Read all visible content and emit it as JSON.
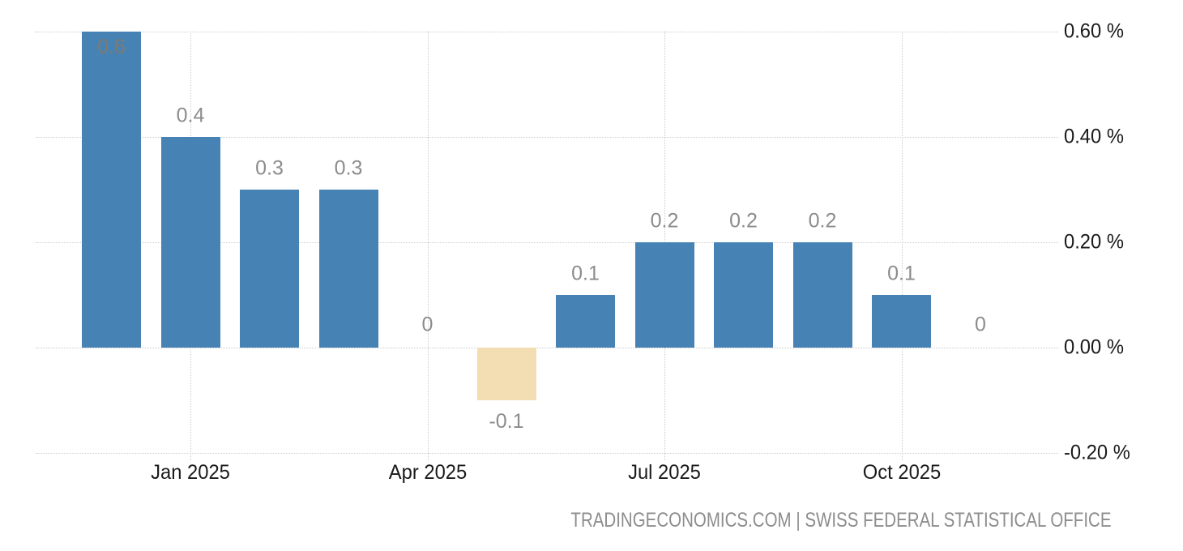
{
  "chart_data": {
    "type": "bar",
    "title": "",
    "unit": "%",
    "values": [
      0.6,
      0.4,
      0.3,
      0.3,
      0,
      -0.1,
      0.1,
      0.2,
      0.2,
      0.2,
      0.1,
      0
    ],
    "bar_labels": [
      "0.6",
      "0.4",
      "0.3",
      "0.3",
      "0",
      "-0.1",
      "0.1",
      "0.2",
      "0.2",
      "0.2",
      "0.1",
      "0"
    ],
    "first_bar_label_inside": true,
    "x_ticks": [
      {
        "slot": 1,
        "label": "Jan 2025"
      },
      {
        "slot": 4,
        "label": "Apr 2025"
      },
      {
        "slot": 7,
        "label": "Jul 2025"
      },
      {
        "slot": 10,
        "label": "Oct 2025"
      }
    ],
    "y_ticks": [
      {
        "value": 0.6,
        "label": "0.60 %"
      },
      {
        "value": 0.4,
        "label": "0.40 %"
      },
      {
        "value": 0.2,
        "label": "0.20 %"
      },
      {
        "value": 0,
        "label": "0.00 %"
      },
      {
        "value": -0.2,
        "label": "-0.20 %"
      }
    ],
    "ylim": [
      -0.2,
      0.6
    ],
    "grid": "dotted",
    "legend": "none",
    "colors": {
      "positive_bar": "#4682b4",
      "negative_bar": "#f3deb3",
      "value_label": "#8c8c8c",
      "inside_value_label": "#7d7a72",
      "axis_text": "#1a1a1a",
      "gridline": "#cccccc",
      "attribution_text": "#8d8d8d"
    }
  },
  "footer": {
    "attribution": "TRADINGECONOMICS.COM | SWISS FEDERAL STATISTICAL OFFICE"
  }
}
